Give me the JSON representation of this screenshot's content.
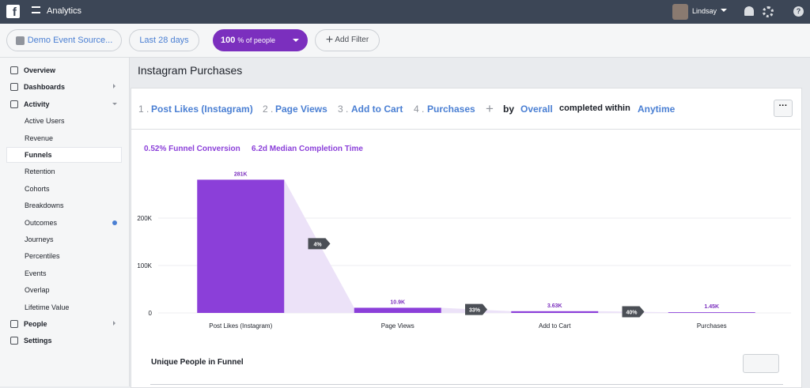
{
  "header": {
    "app": "Analytics",
    "user": "Lindsay"
  },
  "toolbar": {
    "source": "Demo Event Source...",
    "range": "Last 28 days",
    "percent": "100",
    "percent_unit": "% of people",
    "filter": "Add Filter"
  },
  "sidebar": {
    "items": [
      {
        "label": "Overview",
        "level": 0
      },
      {
        "label": "Dashboards",
        "level": 0,
        "arrow": "right"
      },
      {
        "label": "Activity",
        "level": 0,
        "arrow": "down"
      },
      {
        "label": "Active Users",
        "level": 1
      },
      {
        "label": "Revenue",
        "level": 1
      },
      {
        "label": "Funnels",
        "level": 1,
        "selected": true
      },
      {
        "label": "Retention",
        "level": 1
      },
      {
        "label": "Cohorts",
        "level": 1
      },
      {
        "label": "Breakdowns",
        "level": 1
      },
      {
        "label": "Outcomes",
        "level": 1,
        "dot": true
      },
      {
        "label": "Journeys",
        "level": 1
      },
      {
        "label": "Percentiles",
        "level": 1
      },
      {
        "label": "Events",
        "level": 1
      },
      {
        "label": "Overlap",
        "level": 1
      },
      {
        "label": "Lifetime Value",
        "level": 1
      },
      {
        "label": "People",
        "level": 0,
        "arrow": "right"
      },
      {
        "label": "Settings",
        "level": 0
      }
    ]
  },
  "page": {
    "title": "Instagram Purchases",
    "steps": [
      {
        "num": "1 .",
        "label": "Post Likes (Instagram)"
      },
      {
        "num": "2 .",
        "label": "Page Views"
      },
      {
        "num": "3 .",
        "label": "Add to Cart"
      },
      {
        "num": "4 .",
        "label": "Purchases"
      }
    ],
    "by": "by",
    "group": "Overall",
    "within": "completed within",
    "time": "Anytime",
    "conversion": "0.52% Funnel Conversion",
    "median": "6.2d Median Completion Time",
    "section": "Unique People in Funnel"
  },
  "chart_data": {
    "type": "funnel",
    "categories": [
      "Post Likes (Instagram)",
      "Page Views",
      "Add to Cart",
      "Purchases"
    ],
    "values": [
      281000,
      10900,
      3630,
      1450
    ],
    "value_labels": [
      "281K",
      "10.9K",
      "3.63K",
      "1.45K"
    ],
    "step_conversions": [
      "4%",
      "33%",
      "40%"
    ],
    "color": "#8b3fd9",
    "ylim": [
      0,
      300000
    ],
    "yticks": [
      0,
      {
        "value": 100000,
        "label": "100K"
      },
      {
        "value": 200000,
        "label": "200K"
      }
    ],
    "grid": true
  }
}
